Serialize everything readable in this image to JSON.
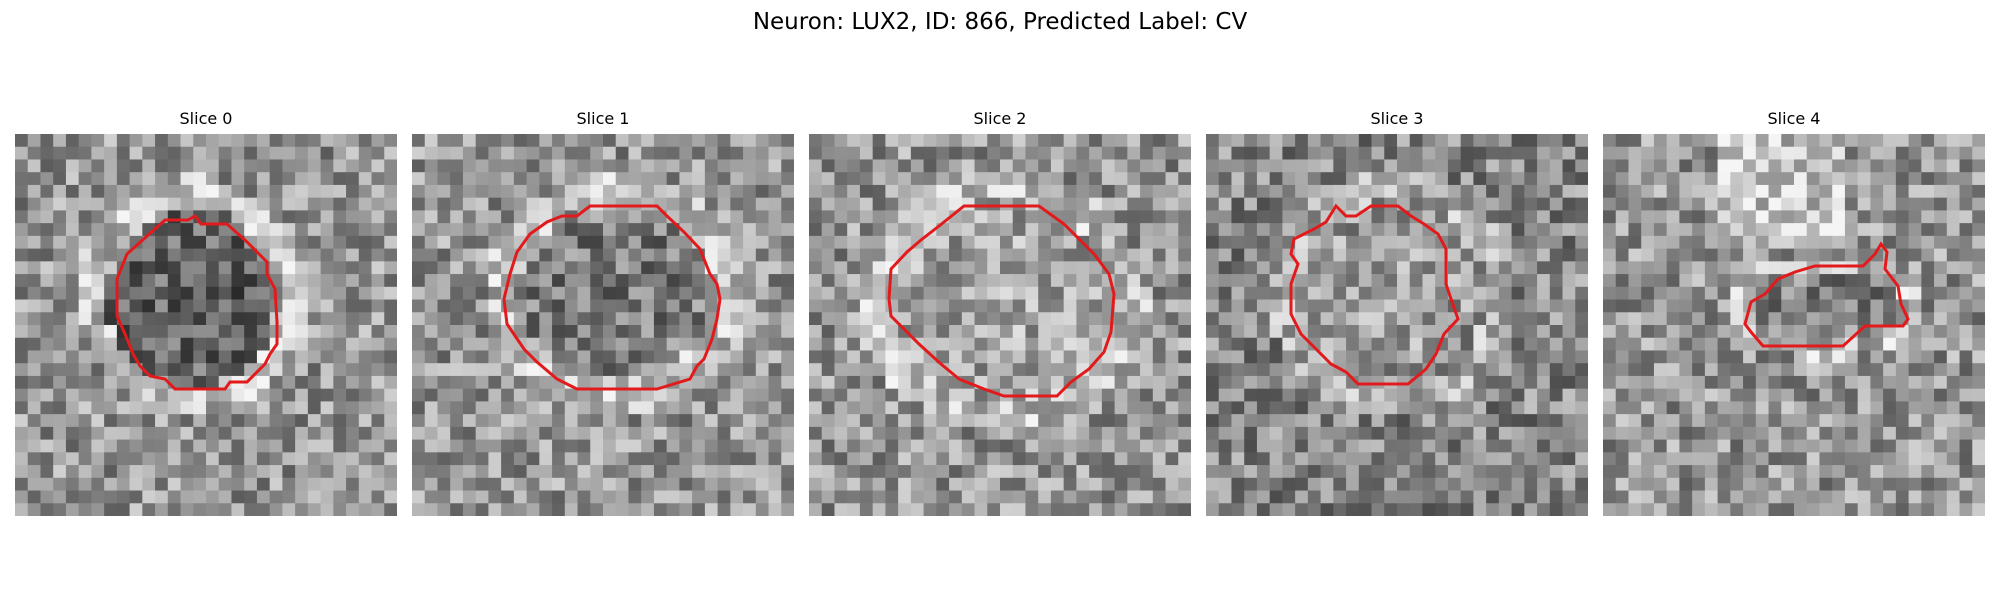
{
  "figure": {
    "title": "Neuron: LUX2, ID: 866, Predicted Label: CV"
  },
  "panels": [
    {
      "title": "Slice 0",
      "contour_color": "#e31a1c",
      "grid_size": 30
    },
    {
      "title": "Slice 1",
      "contour_color": "#e31a1c",
      "grid_size": 30
    },
    {
      "title": "Slice 2",
      "contour_color": "#e31a1c",
      "grid_size": 30
    },
    {
      "title": "Slice 3",
      "contour_color": "#e31a1c",
      "grid_size": 30
    },
    {
      "title": "Slice 4",
      "contour_color": "#e31a1c",
      "grid_size": 30
    }
  ]
}
